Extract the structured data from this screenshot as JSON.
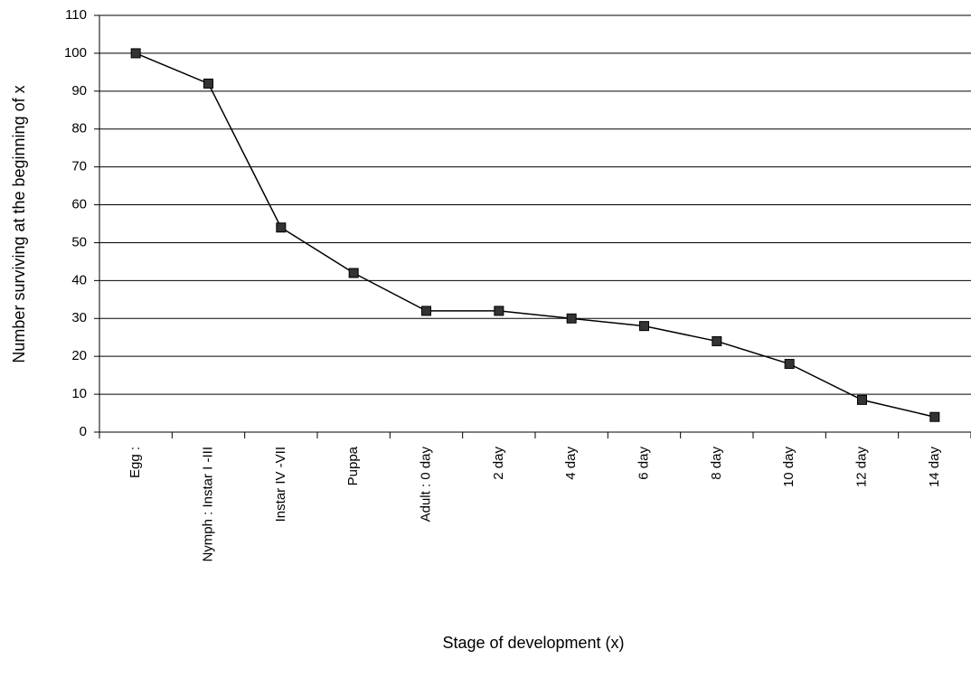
{
  "chart_data": {
    "type": "line",
    "y_label": "Number surviving at the beginning of x",
    "x_label": "Stage of development (x)",
    "categories": [
      "Egg  :",
      "Nymph  :  Instar I -III",
      "Instar IV   -VII",
      "Puppa",
      "Adult   :  0 day",
      "2 day",
      "4 day",
      "6 day",
      "8 day",
      "10 day",
      "12 day",
      "14 day"
    ],
    "series": [
      {
        "color": "#000000",
        "values": [
          100,
          92,
          54,
          42,
          32,
          32,
          30,
          28,
          24,
          18,
          8.5,
          4
        ]
      }
    ],
    "ylim": [
      0,
      110
    ],
    "yticks": [
      0,
      10,
      20,
      30,
      40,
      50,
      60,
      70,
      80,
      90,
      100,
      110
    ],
    "grid": true
  }
}
